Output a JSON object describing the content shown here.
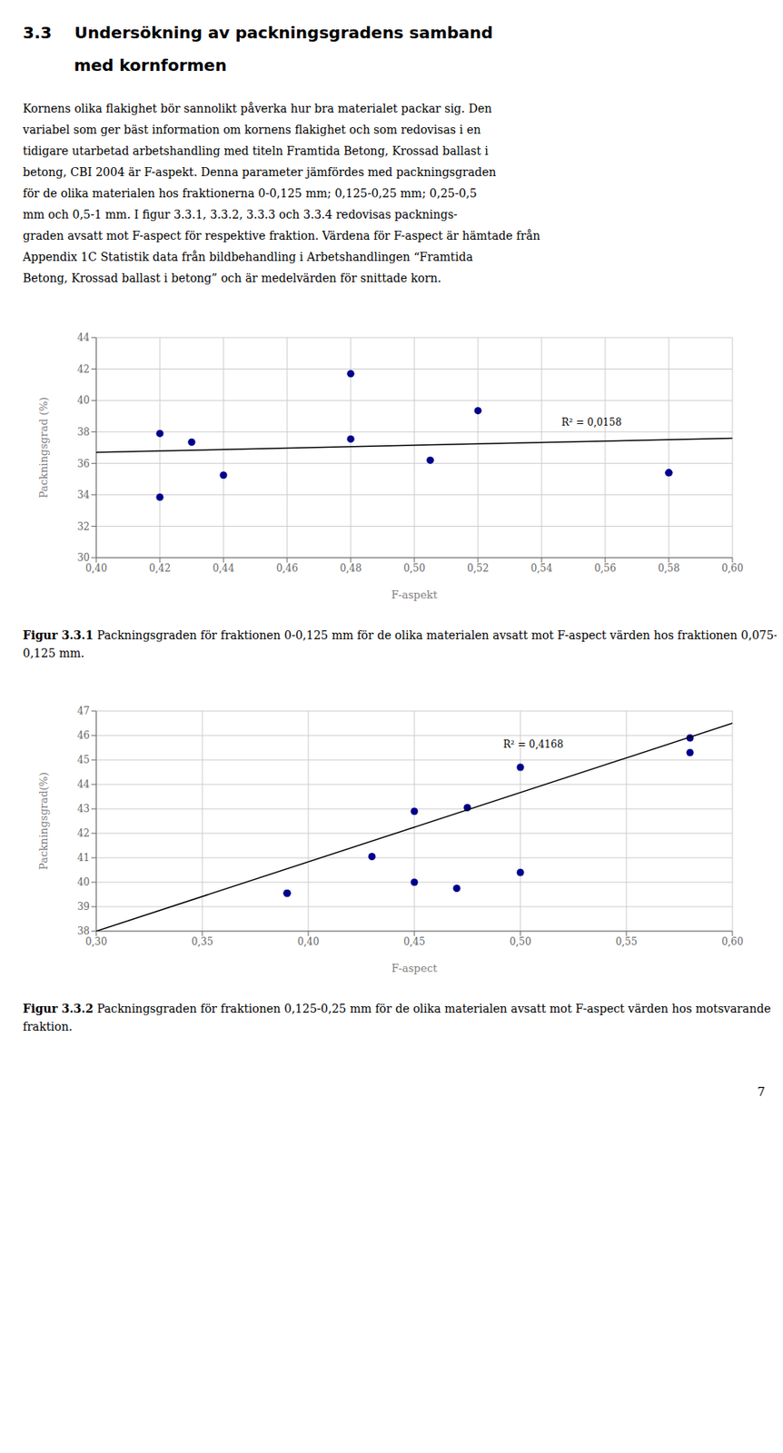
{
  "title": [
    "3.3    Undersökning av packningsgradens samband",
    "         med kornformen"
  ],
  "text": [
    "Kornens olika flakighet bör sannolikt påverka hur bra materialet packar sig. Den",
    "variabel som ger bäst information om kornens flakighet och som redovisas i en",
    "tidigare utarbetad arbetshandling med titeln Framtida Betong, Krossad ballast i",
    "betong, CBI 2004 är F-aspekt. Denna parameter jämfördes med packningsgraden",
    "för de olika materialen hos fraktionerna 0-0,125 mm; 0,125-0,25 mm; 0,25-0,5",
    "mm och 0,5-1 mm. I figur 3.3.1, 3.3.2, 3.3.3 och 3.3.4 redovisas packnings-",
    "graden avsatt mot F-aspect för respektive fraktion. Värdena för F-aspect är hämtade från",
    "Appendix 1C Statistik data från bildbehandling i Arbetshandlingen “Framtida",
    "Betong, Krossad ballast i betong” och är medelvärden för snittade korn."
  ],
  "page_number": "7",
  "chart_data": [
    {
      "type": "scatter",
      "xlabel": "F-aspekt",
      "ylabel": "Packningsgrad (%)",
      "series": [
        {
          "type": "scatter",
          "color": "#00008B",
          "x": [
            0.42,
            0.42,
            0.43,
            0.44,
            0.48,
            0.48,
            0.505,
            0.52,
            0.58,
            0.58
          ],
          "values": [
            37.9,
            33.85,
            37.35,
            35.25,
            41.7,
            37.55,
            36.2,
            39.35,
            35.4,
            35.4
          ]
        },
        {
          "type": "line",
          "color": "#000000",
          "x": [
            0.4,
            0.6
          ],
          "values": [
            36.7,
            37.6
          ]
        }
      ],
      "annotations": [
        {
          "text": "R² = 0,0158",
          "x": 0.545,
          "y": 38.6
        }
      ],
      "xlim": [
        0.4,
        0.6
      ],
      "ylim": [
        30,
        44
      ],
      "xticks": [
        {
          "value": 0.4,
          "label": "0,40"
        },
        {
          "value": 0.42,
          "label": "0,42"
        },
        {
          "value": 0.44,
          "label": "0,44"
        },
        {
          "value": 0.46,
          "label": "0,46"
        },
        {
          "value": 0.48,
          "label": "0,48"
        },
        {
          "value": 0.5,
          "label": "0,50"
        },
        {
          "value": 0.52,
          "label": "0,52"
        },
        {
          "value": 0.54,
          "label": "0,54"
        },
        {
          "value": 0.56,
          "label": "0,56"
        },
        {
          "value": 0.58,
          "label": "0,58"
        },
        {
          "value": 0.6,
          "label": "0,60"
        }
      ],
      "yticks": [
        30,
        32,
        34,
        36,
        38,
        40,
        42,
        44
      ],
      "grid": true,
      "caption_label": "Figur 3.3.1",
      "caption": " Packningsgraden för fraktionen 0-0,125 mm för de olika materialen avsatt mot F-aspect värden hos fraktionen 0,075-0,125 mm."
    },
    {
      "type": "scatter",
      "xlabel": "F-aspect",
      "ylabel": "Packningsgrad(%)",
      "series": [
        {
          "type": "scatter",
          "color": "#00008B",
          "x": [
            0.39,
            0.39,
            0.43,
            0.45,
            0.45,
            0.47,
            0.475,
            0.5,
            0.5,
            0.58,
            0.58
          ],
          "values": [
            39.55,
            39.55,
            41.05,
            42.9,
            40.0,
            39.75,
            43.05,
            44.7,
            40.4,
            45.3,
            45.9
          ]
        },
        {
          "type": "line",
          "color": "#000000",
          "x": [
            0.3,
            0.6
          ],
          "values": [
            38.0,
            46.5
          ]
        }
      ],
      "annotations": [
        {
          "text": "R² = 0,4168",
          "x": 0.49,
          "y": 45.65
        }
      ],
      "xlim": [
        0.3,
        0.6
      ],
      "ylim": [
        38,
        47
      ],
      "xticks": [
        {
          "value": 0.3,
          "label": "0,30"
        },
        {
          "value": 0.35,
          "label": "0,35"
        },
        {
          "value": 0.4,
          "label": "0,40"
        },
        {
          "value": 0.45,
          "label": "0,45"
        },
        {
          "value": 0.5,
          "label": "0,50"
        },
        {
          "value": 0.55,
          "label": "0,55"
        },
        {
          "value": 0.6,
          "label": "0,60"
        }
      ],
      "yticks": [
        38,
        39,
        40,
        41,
        42,
        43,
        44,
        45,
        46,
        47
      ],
      "grid": true,
      "caption_label": "Figur 3.3.2",
      "caption": " Packningsgraden för fraktionen 0,125-0,25 mm för de olika materialen avsatt mot F-aspect värden hos motsvarande fraktion."
    }
  ]
}
